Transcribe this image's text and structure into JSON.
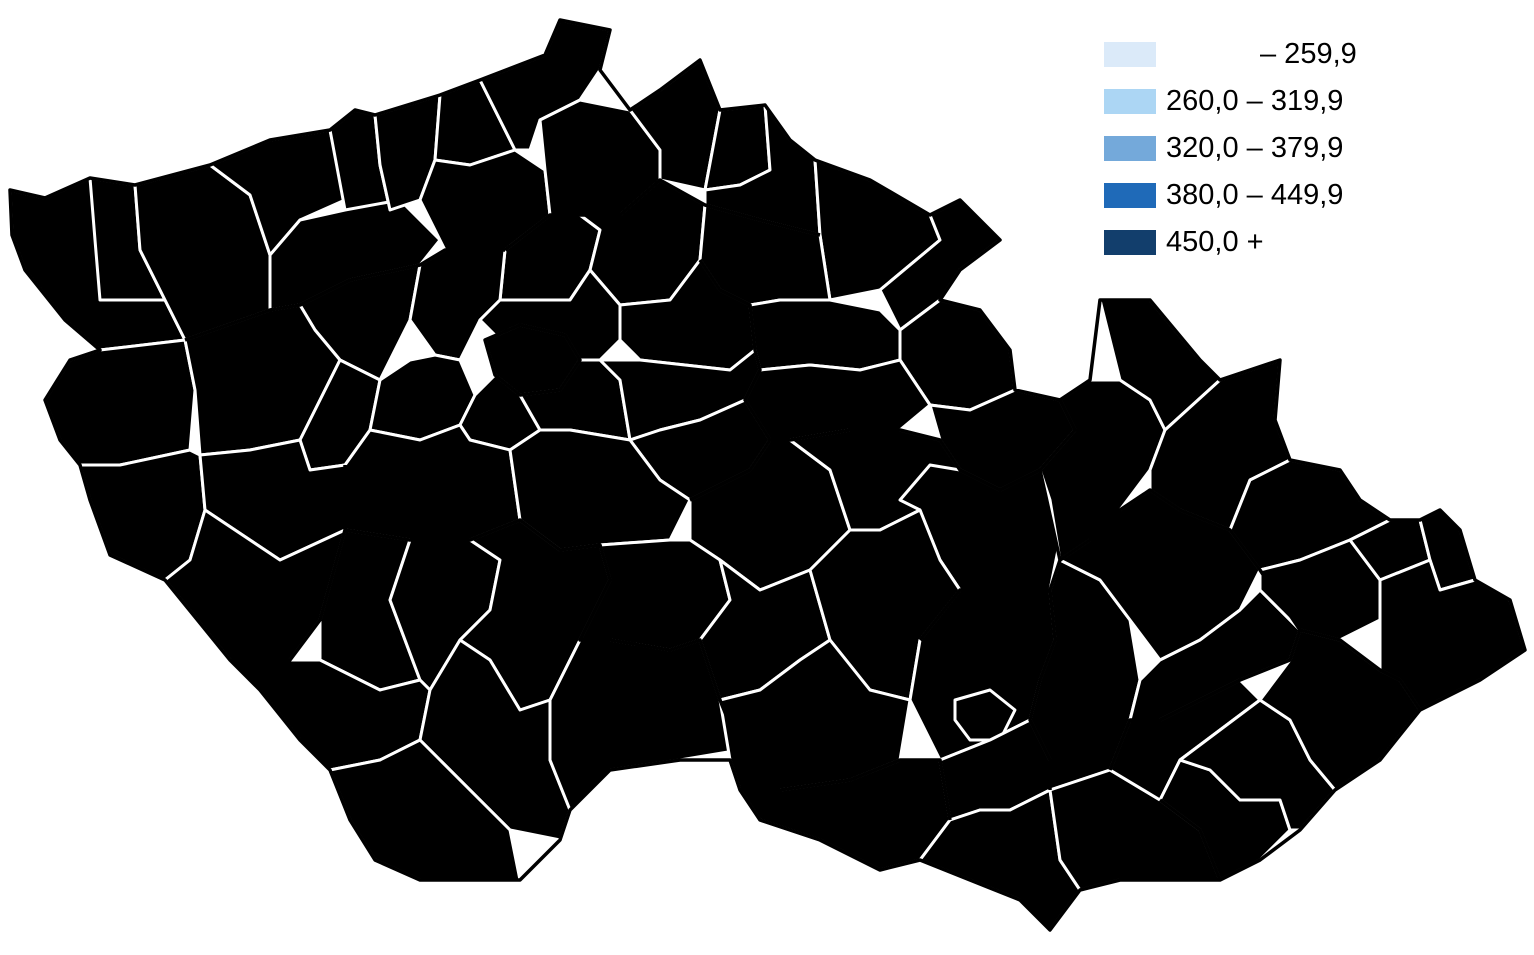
{
  "map": {
    "palette": {
      "class1": "#dbeaf9",
      "class2": "#acd6f4",
      "class3": "#74a9da",
      "class4": "#1f6ab8",
      "class5": "#123e6c",
      "region_border": "#000000",
      "district_border": "#ffffff"
    }
  },
  "legend": {
    "items": [
      {
        "label": "– 259,9",
        "color": "#dbeaf9"
      },
      {
        "label": "260,0 – 319,9",
        "color": "#acd6f4"
      },
      {
        "label": "320,0 – 379,9",
        "color": "#74a9da"
      },
      {
        "label": "380,0 – 449,9",
        "color": "#1f6ab8"
      },
      {
        "label": "450,0 +",
        "color": "#123e6c"
      }
    ]
  }
}
